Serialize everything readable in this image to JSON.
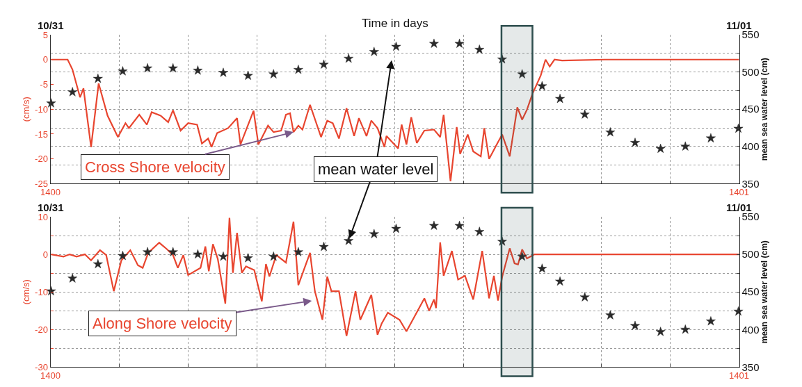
{
  "chart_data": [
    {
      "type": "line",
      "title": "Time in days",
      "ylabel": "(cm/s)",
      "y2label": "mean sea water level (cm)",
      "xlim": [
        1400,
        1401
      ],
      "xticks": [
        {
          "value": 1400,
          "label": "1400"
        },
        {
          "value": 1400.1,
          "label": null
        },
        {
          "value": 1400.2,
          "label": null
        },
        {
          "value": 1400.3,
          "label": null
        },
        {
          "value": 1400.4,
          "label": null
        },
        {
          "value": 1400.5,
          "label": null
        },
        {
          "value": 1400.6,
          "label": null
        },
        {
          "value": 1400.7,
          "label": null
        },
        {
          "value": 1400.8,
          "label": null
        },
        {
          "value": 1400.9,
          "label": null
        },
        {
          "value": 1401,
          "label": "1401"
        }
      ],
      "ylim": [
        -25,
        5
      ],
      "yticks": [
        -25,
        -20,
        -15,
        -10,
        -5,
        0,
        5
      ],
      "y2lim": [
        350,
        550
      ],
      "y2ticks": [
        350,
        {
          "value": 375,
          "label": null
        },
        400,
        {
          "value": 425,
          "label": null
        },
        450,
        {
          "value": 475,
          "label": null
        },
        500,
        {
          "value": 525,
          "label": null
        },
        550
      ],
      "grid": true,
      "series": [
        {
          "type": "line",
          "color": "#e8452f",
          "line_style": "solid",
          "x": [
            1400.001,
            1400.014,
            1400.025,
            1400.032,
            1400.043,
            1400.048,
            1400.059,
            1400.07,
            1400.083,
            1400.098,
            1400.109,
            1400.114,
            1400.129,
            1400.14,
            1400.147,
            1400.16,
            1400.171,
            1400.178,
            1400.189,
            1400.2,
            1400.213,
            1400.22,
            1400.229,
            1400.234,
            1400.242,
            1400.258,
            1400.271,
            1400.276,
            1400.295,
            1400.302,
            1400.316,
            1400.324,
            1400.335,
            1400.342,
            1400.348,
            1400.353,
            1400.36,
            1400.366,
            1400.377,
            1400.393,
            1400.402,
            1400.41,
            1400.419,
            1400.43,
            1400.441,
            1400.448,
            1400.459,
            1400.466,
            1400.475,
            1400.485,
            1400.488,
            1400.505,
            1400.51,
            1400.517,
            1400.524,
            1400.532,
            1400.543,
            1400.557,
            1400.566,
            1400.571,
            1400.581,
            1400.59,
            1400.595,
            1400.606,
            1400.614,
            1400.625,
            1400.63,
            1400.637,
            1400.65,
            1400.656,
            1400.667,
            1400.678,
            1400.685,
            1400.692,
            1400.7,
            1400.712,
            1400.719,
            1400.725,
            1400.732,
            1400.743,
            1400.805,
            1401.0
          ],
          "values": [
            0,
            0,
            0,
            -2,
            -7.6,
            -5.8,
            -17.6,
            -4.8,
            -11.3,
            -15.6,
            -12.8,
            -13.8,
            -11.1,
            -13.1,
            -10.6,
            -11.3,
            -12.6,
            -10.2,
            -14.3,
            -12.8,
            -13.1,
            -16.9,
            -15.9,
            -17.6,
            -14.8,
            -13.8,
            -11.8,
            -17.1,
            -10.3,
            -17.1,
            -13.3,
            -14.6,
            -14.3,
            -11.1,
            -10.8,
            -14.6,
            -13.3,
            -14.1,
            -9.1,
            -15.6,
            -12.3,
            -12.8,
            -15.9,
            -9.8,
            -15.4,
            -11.8,
            -15.4,
            -12.3,
            -13.8,
            -17.6,
            -15.4,
            -17.9,
            -13.1,
            -17.1,
            -11.6,
            -16.8,
            -14.3,
            -14.1,
            -15.6,
            -11.1,
            -24.5,
            -13.6,
            -19,
            -15.1,
            -18.5,
            -19.5,
            -13.8,
            -20,
            -16.6,
            -15.1,
            -19.5,
            -9.6,
            -12.1,
            -10.1,
            -6.9,
            -3.2,
            0,
            -1.4,
            0,
            -0.2,
            0,
            0
          ]
        },
        {
          "type": "scatter",
          "axis": "y2",
          "color": "#2a2a2a",
          "marker": "star",
          "x": [
            1400.001,
            1400.032,
            1400.069,
            1400.105,
            1400.141,
            1400.178,
            1400.214,
            1400.251,
            1400.287,
            1400.324,
            1400.36,
            1400.397,
            1400.433,
            1400.47,
            1400.502,
            1400.557,
            1400.594,
            1400.623,
            1400.656,
            1400.685,
            1400.714,
            1400.74,
            1400.776,
            1400.813,
            1400.849,
            1400.886,
            1400.922,
            1400.959,
            1400.999
          ],
          "values": [
            458,
            473,
            491,
            501,
            505,
            505,
            502,
            499,
            495,
            497,
            503,
            510,
            518,
            527,
            534,
            538,
            538,
            530,
            517,
            497,
            481,
            464,
            443,
            419,
            405,
            397,
            400,
            411,
            424
          ]
        }
      ],
      "bands": [
        {
          "axis": "x",
          "from": 1400.655,
          "to": 1400.7,
          "color": "#2f4f4f"
        }
      ],
      "annotations": [
        "10/31",
        "11/01",
        {
          "text": "Cross Shore velocity",
          "x": 1400.353,
          "y": -14.6
        },
        "mean water level"
      ]
    },
    {
      "type": "line",
      "ylabel": "(cm/s)",
      "y2label": "mean sea water level (cm)",
      "xlim": [
        1400,
        1401
      ],
      "xticks": [
        {
          "value": 1400,
          "label": "1400"
        },
        {
          "value": 1400.1,
          "label": null
        },
        {
          "value": 1400.2,
          "label": null
        },
        {
          "value": 1400.3,
          "label": null
        },
        {
          "value": 1400.4,
          "label": null
        },
        {
          "value": 1400.5,
          "label": null
        },
        {
          "value": 1400.6,
          "label": null
        },
        {
          "value": 1400.7,
          "label": null
        },
        {
          "value": 1400.8,
          "label": null
        },
        {
          "value": 1400.9,
          "label": null
        },
        {
          "value": 1401,
          "label": "1401"
        }
      ],
      "ylim": [
        -30,
        10
      ],
      "yticks": [
        -30,
        {
          "value": -25,
          "label": null
        },
        -20,
        {
          "value": -15,
          "label": null
        },
        -10,
        {
          "value": -5,
          "label": null
        },
        0,
        {
          "value": 5,
          "label": null
        },
        10
      ],
      "y2lim": [
        350,
        550
      ],
      "y2ticks": [
        350,
        {
          "value": 375,
          "label": null
        },
        400,
        {
          "value": 425,
          "label": null
        },
        450,
        {
          "value": 475,
          "label": null
        },
        500,
        {
          "value": 525,
          "label": null
        },
        550
      ],
      "grid": true,
      "series": [
        {
          "type": "line",
          "color": "#e8452f",
          "line_style": "solid",
          "x": [
            1400.001,
            1400.019,
            1400.028,
            1400.038,
            1400.05,
            1400.059,
            1400.072,
            1400.081,
            1400.092,
            1400.103,
            1400.116,
            1400.127,
            1400.134,
            1400.142,
            1400.158,
            1400.169,
            1400.178,
            1400.185,
            1400.193,
            1400.2,
            1400.218,
            1400.225,
            1400.23,
            1400.236,
            1400.243,
            1400.254,
            1400.26,
            1400.265,
            1400.271,
            1400.278,
            1400.284,
            1400.296,
            1400.307,
            1400.313,
            1400.318,
            1400.328,
            1400.342,
            1400.353,
            1400.36,
            1400.377,
            1400.384,
            1400.395,
            1400.402,
            1400.408,
            1400.419,
            1400.43,
            1400.443,
            1400.45,
            1400.466,
            1400.475,
            1400.481,
            1400.49,
            1400.507,
            1400.517,
            1400.543,
            1400.55,
            1400.557,
            1400.56,
            1400.566,
            1400.571,
            1400.583,
            1400.592,
            1400.602,
            1400.614,
            1400.627,
            1400.637,
            1400.644,
            1400.65,
            1400.656,
            1400.667,
            1400.674,
            1400.679,
            1400.685,
            1400.692,
            1400.703,
            1401.0
          ],
          "values": [
            0,
            -0.6,
            0,
            -0.6,
            0,
            -1.6,
            1.1,
            -0.2,
            -9.8,
            -1.6,
            1.1,
            -2.9,
            -3.6,
            0.4,
            3.1,
            1.4,
            -0.2,
            -3.6,
            -0.2,
            -5.5,
            -3.6,
            2.1,
            -4.5,
            2.7,
            -1.2,
            -13.1,
            9.7,
            -4.9,
            5.7,
            -4.9,
            -3.2,
            -4.2,
            -12.5,
            -2.6,
            -5.9,
            -0.2,
            -2.2,
            8.7,
            -8.2,
            0.4,
            -9.8,
            -17.4,
            -5.9,
            -9.8,
            -9.8,
            -21.7,
            -9.8,
            -17.4,
            -10.8,
            -21.4,
            -18.4,
            -15.5,
            -17.4,
            -20.5,
            -11.7,
            -15,
            -12,
            -14.3,
            3.2,
            -5.7,
            0.9,
            -6.7,
            -5.7,
            -12,
            0.9,
            -11.7,
            -5.7,
            -12.3,
            -6,
            1.6,
            -2.4,
            -2.7,
            1.3,
            -1.1,
            0,
            0
          ]
        },
        {
          "type": "scatter",
          "axis": "y2",
          "color": "#2a2a2a",
          "marker": "star",
          "x": [
            1400.001,
            1400.032,
            1400.069,
            1400.105,
            1400.141,
            1400.178,
            1400.214,
            1400.251,
            1400.287,
            1400.324,
            1400.36,
            1400.397,
            1400.433,
            1400.47,
            1400.502,
            1400.557,
            1400.594,
            1400.623,
            1400.656,
            1400.685,
            1400.714,
            1400.74,
            1400.776,
            1400.813,
            1400.849,
            1400.886,
            1400.922,
            1400.959,
            1400.999
          ],
          "values": [
            451,
            468,
            487,
            498,
            503,
            503,
            500,
            497,
            495,
            497,
            503,
            510,
            518,
            527,
            534,
            538,
            538,
            530,
            517,
            497,
            481,
            464,
            443,
            419,
            405,
            397,
            400,
            411,
            424
          ]
        }
      ],
      "bands": [
        {
          "axis": "x",
          "from": 1400.655,
          "to": 1400.7,
          "color": "#2f4f4f"
        }
      ],
      "annotations": [
        "10/31",
        "11/01",
        "Along Shore velocity"
      ]
    }
  ]
}
